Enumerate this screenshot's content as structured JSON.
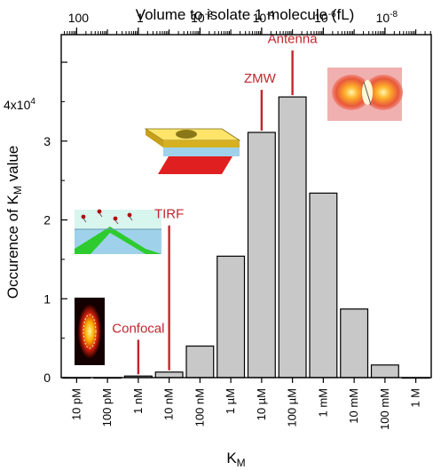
{
  "chart_data": {
    "type": "bar",
    "title": "",
    "top_axis": {
      "label": "Volume to isolate 1 molecule (fL)",
      "ticks": [
        {
          "base": "100",
          "exp": ""
        },
        {
          "base": "1",
          "exp": ""
        },
        {
          "base": "10",
          "exp": "-2"
        },
        {
          "base": "10",
          "exp": "-4"
        },
        {
          "base": "10",
          "exp": "-6"
        },
        {
          "base": "10",
          "exp": "-8"
        }
      ]
    },
    "xlabel": {
      "main": "K",
      "sub": "M"
    },
    "ylabel": {
      "main": "Occurence of K",
      "sub": "M",
      "tail": " value"
    },
    "y_multiplier": {
      "base": "4x10",
      "exp": "4"
    },
    "ylim": [
      0,
      4.35
    ],
    "yticks": [
      "0",
      "1",
      "2",
      "3"
    ],
    "categories": [
      "10 pM",
      "100 pM",
      "1 nM",
      "10 nM",
      "100 nM",
      "1 µM",
      "10 µM",
      "100 µM",
      "1 mM",
      "10 mM",
      "100 mM",
      "1 M"
    ],
    "values": [
      0.0,
      0.0,
      0.02,
      0.07,
      0.4,
      1.54,
      3.11,
      3.56,
      2.34,
      0.87,
      0.16,
      0.0
    ],
    "bar_fill": "#c8c8c8",
    "annotation_color": "#c0272d",
    "annotations": [
      {
        "label": "Confocal",
        "category": "1 nM",
        "line_top": 0.48
      },
      {
        "label": "TIRF",
        "category": "10 nM",
        "line_top": 1.93
      },
      {
        "label": "ZMW",
        "category": "10 µM",
        "line_top": 3.65
      },
      {
        "label": "Antenna",
        "category": "100 µM",
        "line_top": 4.15
      }
    ]
  }
}
